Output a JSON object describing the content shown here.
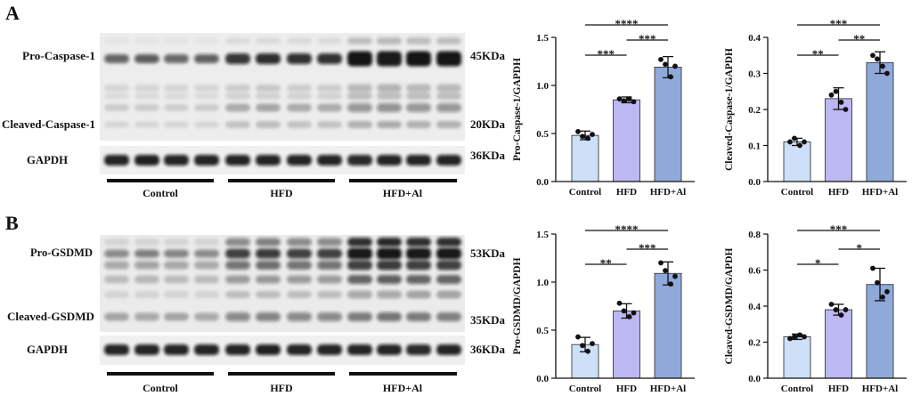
{
  "colors": {
    "control": "#cde0f7",
    "hfd": "#bcb8f2",
    "hfd_al": "#8fa9da",
    "bar_outline": "#3a3a3a",
    "ink": "#111111"
  },
  "panels": {
    "a": {
      "label": "A",
      "blot": {
        "pro_label": "Pro-Caspase-1",
        "cleaved_label": "Cleaved-Caspase-1",
        "loading_label": "GAPDH",
        "pro_mw": "45KDa",
        "cleaved_mw": "20KDa",
        "loading_mw": "36KDa",
        "groups": [
          "Control",
          "HFD",
          "HFD+Al"
        ]
      }
    },
    "b": {
      "label": "B",
      "blot": {
        "pro_label": "Pro-GSDMD",
        "cleaved_label": "Cleaved-GSDMD",
        "loading_label": "GAPDH",
        "pro_mw": "53KDa",
        "cleaved_mw": "35KDa",
        "loading_mw": "36KDa",
        "groups": [
          "Control",
          "HFD",
          "HFD+Al"
        ]
      }
    }
  },
  "chart_data": [
    {
      "type": "bar",
      "categories": [
        "Control",
        "HFD",
        "HFD+Al"
      ],
      "values": [
        0.48,
        0.85,
        1.19
      ],
      "error": [
        0.045,
        0.03,
        0.11
      ],
      "points": [
        [
          0.52,
          0.47,
          0.45,
          0.49
        ],
        [
          0.86,
          0.84,
          0.86,
          0.83
        ],
        [
          1.27,
          1.22,
          1.09,
          1.2
        ]
      ],
      "ylabel": "Pro-Caspase-1/GAPDH",
      "ylim": [
        0,
        1.5
      ],
      "yticks": [
        "0.0",
        "0.5",
        "1.0",
        "1.5"
      ],
      "significance": [
        {
          "groups": [
            0,
            1
          ],
          "label": "***"
        },
        {
          "groups": [
            1,
            2
          ],
          "label": "***"
        },
        {
          "groups": [
            0,
            2
          ],
          "label": "****"
        }
      ]
    },
    {
      "type": "bar",
      "categories": [
        "Control",
        "HFD",
        "HFD+Al"
      ],
      "values": [
        0.11,
        0.23,
        0.33
      ],
      "error": [
        0.01,
        0.03,
        0.03
      ],
      "points": [
        [
          0.11,
          0.12,
          0.1,
          0.11
        ],
        [
          0.24,
          0.25,
          0.22,
          0.2
        ],
        [
          0.35,
          0.34,
          0.32,
          0.3
        ]
      ],
      "ylabel": "Cleaved-Caspase-1/GAPDH",
      "ylim": [
        0,
        0.4
      ],
      "yticks": [
        "0.0",
        "0.1",
        "0.2",
        "0.3",
        "0.4"
      ],
      "significance": [
        {
          "groups": [
            0,
            1
          ],
          "label": "**"
        },
        {
          "groups": [
            1,
            2
          ],
          "label": "**"
        },
        {
          "groups": [
            0,
            2
          ],
          "label": "***"
        }
      ]
    },
    {
      "type": "bar",
      "categories": [
        "Control",
        "HFD",
        "HFD+Al"
      ],
      "values": [
        0.35,
        0.7,
        1.09
      ],
      "error": [
        0.075,
        0.075,
        0.12
      ],
      "points": [
        [
          0.43,
          0.34,
          0.28,
          0.36
        ],
        [
          0.78,
          0.7,
          0.64,
          0.68
        ],
        [
          1.2,
          1.12,
          0.98,
          1.06
        ]
      ],
      "ylabel": "Pro-GSDMD/GAPDH",
      "ylim": [
        0,
        1.5
      ],
      "yticks": [
        "0.0",
        "0.5",
        "1.0",
        "1.5"
      ],
      "significance": [
        {
          "groups": [
            0,
            1
          ],
          "label": "**"
        },
        {
          "groups": [
            1,
            2
          ],
          "label": "***"
        },
        {
          "groups": [
            0,
            2
          ],
          "label": "****"
        }
      ]
    },
    {
      "type": "bar",
      "categories": [
        "Control",
        "HFD",
        "HFD+Al"
      ],
      "values": [
        0.23,
        0.38,
        0.52
      ],
      "error": [
        0.015,
        0.03,
        0.09
      ],
      "points": [
        [
          0.22,
          0.23,
          0.24,
          0.23
        ],
        [
          0.41,
          0.38,
          0.35,
          0.38
        ],
        [
          0.61,
          0.53,
          0.45,
          0.48
        ]
      ],
      "ylabel": "Cleaved-GSDMD/GAPDH",
      "ylim": [
        0,
        0.8
      ],
      "yticks": [
        "0.0",
        "0.2",
        "0.4",
        "0.6",
        "0.8"
      ],
      "significance": [
        {
          "groups": [
            0,
            1
          ],
          "label": "*"
        },
        {
          "groups": [
            1,
            2
          ],
          "label": "*"
        },
        {
          "groups": [
            0,
            2
          ],
          "label": "***"
        }
      ]
    }
  ]
}
